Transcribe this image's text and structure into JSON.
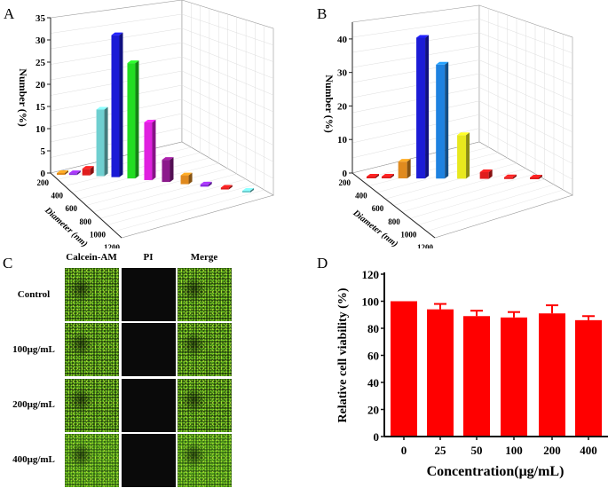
{
  "panels": {
    "a": "A",
    "b": "B",
    "c": "C",
    "d": "D"
  },
  "chart_data": [
    {
      "type": "bar3d",
      "panel": "A",
      "ylabel": "Number (%)",
      "xlabel": "Diameter (nm)",
      "yticks": [
        "0",
        "5",
        "10",
        "15",
        "20",
        "25",
        "30",
        "35"
      ],
      "ylim": [
        0,
        35
      ],
      "dticks": [
        "200",
        "400",
        "600",
        "800",
        "1000",
        "1200"
      ],
      "values": [
        0.3,
        0.3,
        1.5,
        15,
        32,
        26,
        13,
        5,
        2,
        0.5,
        0.3,
        0.3
      ],
      "colors": [
        "#e08a1e",
        "#8b2be2",
        "#e01c1c",
        "#6fcfd0",
        "#1b1bd6",
        "#22dd22",
        "#e020e0",
        "#8b1a8b",
        "#e08a1e",
        "#8b2be2",
        "#e01c1c",
        "#6fcfd0"
      ]
    },
    {
      "type": "bar3d",
      "panel": "B",
      "ylabel": "Number (%)",
      "xlabel": "Diameter (nm)",
      "yticks": [
        "0",
        "10",
        "20",
        "30",
        "40"
      ],
      "ylim": [
        0,
        45
      ],
      "dticks": [
        "200",
        "400",
        "600",
        "800",
        "1000",
        "1200"
      ],
      "values": [
        0.3,
        0.3,
        5,
        42,
        34,
        13,
        2,
        0.3,
        0.3
      ],
      "colors": [
        "#e01c1c",
        "#e01c1c",
        "#e08a1e",
        "#1b1bd6",
        "#1e82e0",
        "#e8e81e",
        "#e01c1c",
        "#e01c1c",
        "#e01c1c"
      ]
    },
    {
      "type": "bar",
      "panel": "D",
      "title": "",
      "xlabel": "Concentration(μg/mL)",
      "ylabel": "Relative cell viability (%)",
      "categories": [
        "0",
        "25",
        "50",
        "100",
        "200",
        "400"
      ],
      "values": [
        100,
        94,
        89,
        88,
        91,
        86
      ],
      "errors": [
        0,
        4,
        4,
        4,
        6,
        3
      ],
      "ylim": [
        0,
        120
      ],
      "yticks": [
        "0",
        "20",
        "40",
        "60",
        "80",
        "100",
        "120"
      ],
      "color": "#ff0000"
    }
  ],
  "microscopy": {
    "columns": [
      "Calcein-AM",
      "PI",
      "Merge"
    ],
    "rows": [
      "Control",
      "100μg/mL",
      "200μg/mL",
      "400μg/mL"
    ]
  }
}
